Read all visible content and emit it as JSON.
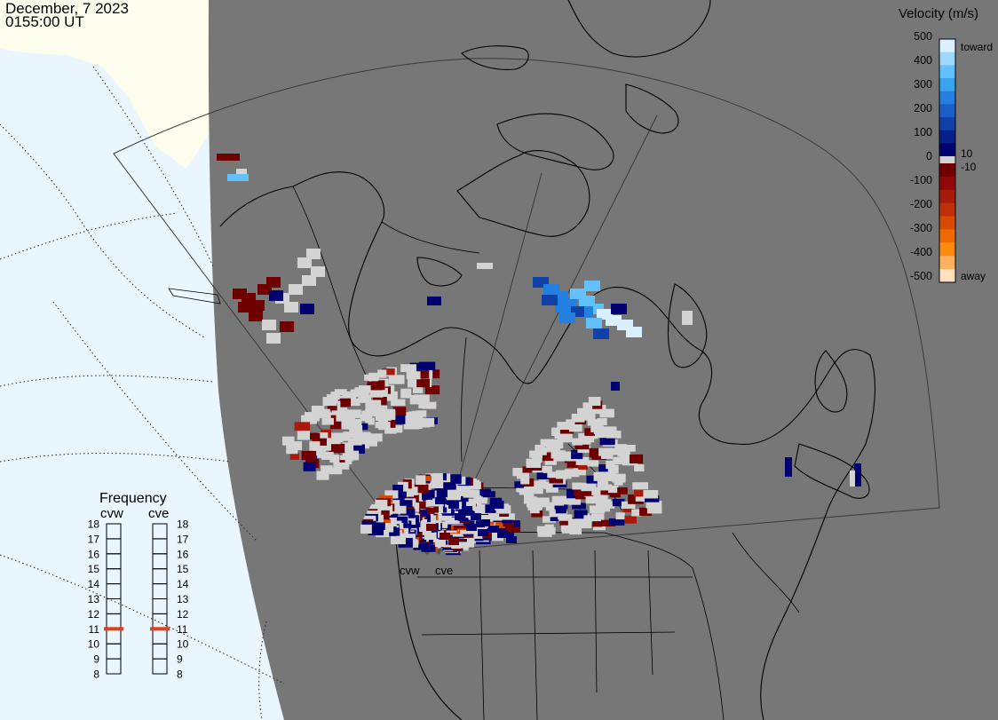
{
  "title": {
    "date": "December, 7 2023",
    "time": "0155:00 UT"
  },
  "colors": {
    "night_side": "#777777",
    "day_side": "#eaf6fd",
    "ice": "#fdfdee",
    "ground_scatter": "#d3d3d3",
    "frequency_marker": "#e0401a"
  },
  "velocity_scale": {
    "title": "Velocity (m/s)",
    "ticks": [
      "500",
      "400",
      "300",
      "200",
      "100",
      "0",
      "-100",
      "-200",
      "-300",
      "-400",
      "-500"
    ],
    "inner_ticks": [
      "10",
      "-10"
    ],
    "toward_label": "toward",
    "away_label": "away",
    "toward_colors": [
      "#d8f0ff",
      "#9cd9ff",
      "#63c0ff",
      "#3aa3f0",
      "#2480e0",
      "#1a5fc8",
      "#1040a8",
      "#06208a",
      "#000070"
    ],
    "away_colors": [
      "#700000",
      "#900808",
      "#a81a0a",
      "#c03008",
      "#d84a00",
      "#ee6a00",
      "#ff8a10",
      "#ffb060",
      "#ffe0c0"
    ]
  },
  "frequency": {
    "title": "Frequency",
    "radars": [
      {
        "name": "cvw",
        "freq_mhz": 11
      },
      {
        "name": "cve",
        "freq_mhz": 11
      }
    ],
    "min_mhz": 8,
    "max_mhz": 18,
    "scale_labels": [
      "18",
      "17",
      "16",
      "15",
      "14",
      "13",
      "12",
      "11",
      "10",
      "9",
      "8"
    ]
  },
  "radar_sites": [
    "cvw",
    "cve"
  ]
}
